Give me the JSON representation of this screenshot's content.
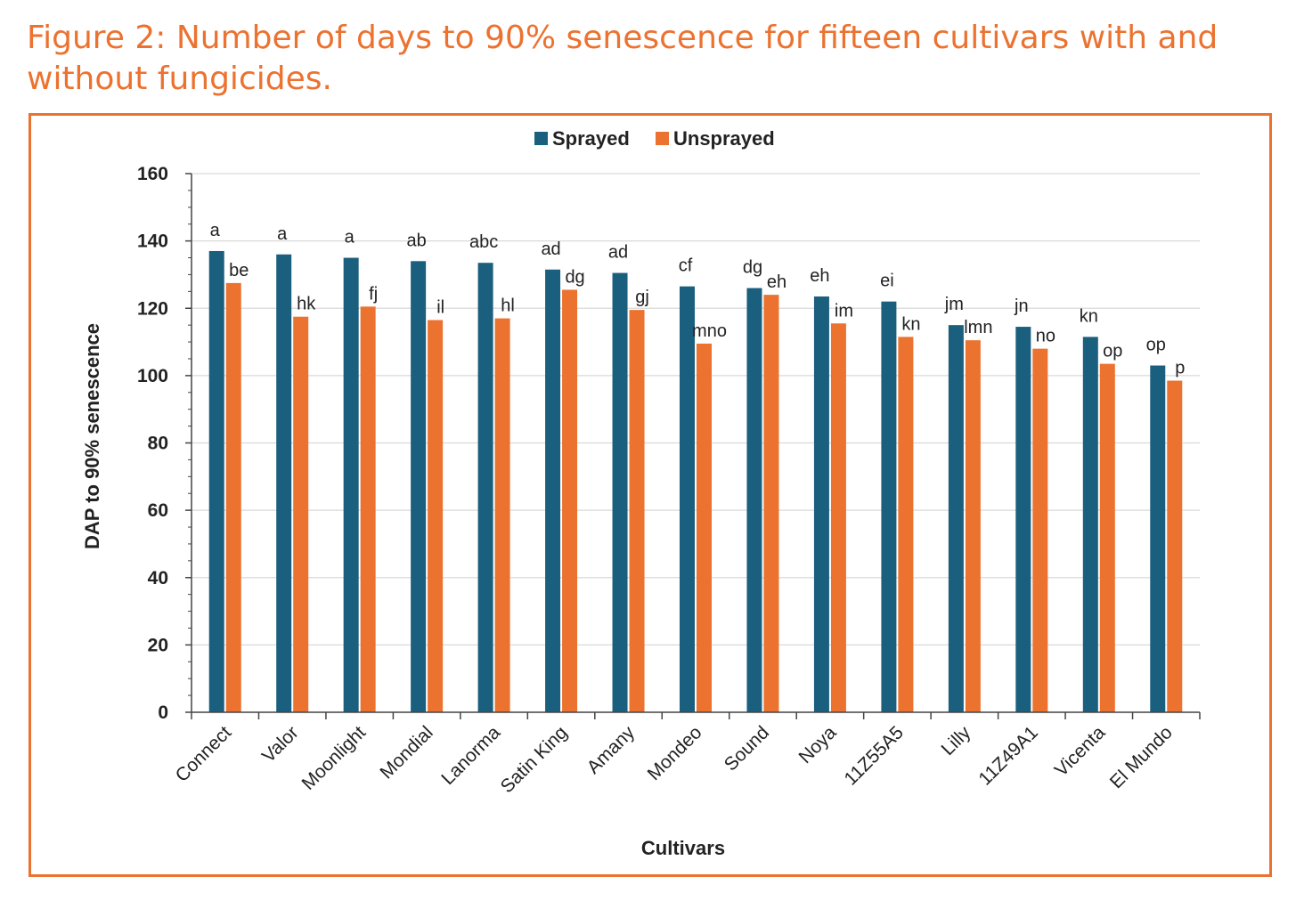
{
  "figure_title": "Figure 2: Number of days to 90% senescence for fifteen cultivars with and without fungicides.",
  "colors": {
    "sprayed": "#1B5F7E",
    "unsprayed": "#EC7230",
    "frame": "#EC7230",
    "grid": "#D9D9D9"
  },
  "chart_data": {
    "type": "bar",
    "title": "",
    "xlabel": "Cultivars",
    "ylabel": "DAP to 90% senescence",
    "ylim": [
      0,
      160
    ],
    "yticks": [
      0,
      20,
      40,
      60,
      80,
      100,
      120,
      140,
      160
    ],
    "grid": true,
    "legend_position": "top-center",
    "categories": [
      "Connect",
      "Valor",
      "Moonlight",
      "Mondial",
      "Lanorma",
      "Satin King",
      "Amany",
      "Mondeo",
      "Sound",
      "Noya",
      "11Z55A5",
      "Lilly",
      "11Z49A1",
      "Vicenta",
      "El Mundo"
    ],
    "series": [
      {
        "name": "Sprayed",
        "values": [
          137,
          136,
          135,
          134,
          133.5,
          131.5,
          130.5,
          126.5,
          126,
          123.5,
          122,
          115,
          114.5,
          111.5,
          103
        ],
        "letters": [
          "a",
          "a",
          "a",
          "ab",
          "abc",
          "ad",
          "ad",
          "cf",
          "dg",
          "eh",
          "ei",
          "jm",
          "jn",
          "kn",
          "op"
        ]
      },
      {
        "name": "Unsprayed",
        "values": [
          127.5,
          117.5,
          120.5,
          116.5,
          117,
          125.5,
          119.5,
          109.5,
          124,
          115.5,
          111.5,
          110.5,
          108,
          103.5,
          98.5
        ],
        "letters": [
          "be",
          "hk",
          "fj",
          "il",
          "hl",
          "dg",
          "gj",
          "mno",
          "eh",
          "im",
          "kn",
          "lmn",
          "no",
          "op",
          "p"
        ]
      }
    ]
  }
}
